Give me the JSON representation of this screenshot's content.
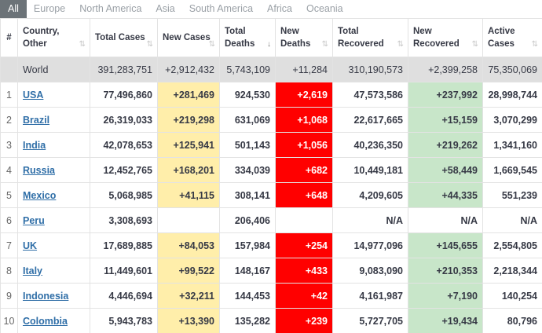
{
  "tabs": [
    "All",
    "Europe",
    "North America",
    "Asia",
    "South America",
    "Africa",
    "Oceania"
  ],
  "headers": {
    "hash": "#",
    "country": "Country, Other",
    "total_cases": "Total Cases",
    "new_cases": "New Cases",
    "total_deaths": "Total Deaths",
    "new_deaths": "New Deaths",
    "total_recovered": "Total Recovered",
    "new_recovered": "New Recovered",
    "active_cases": "Active Cases"
  },
  "icons": {
    "sort": "sort-arrows-icon",
    "sort_active": "sort-descending-icon"
  },
  "colors": {
    "new_cases": "#ffeeaa",
    "new_deaths": "#ff0000",
    "new_recovered": "#c8e6c9",
    "active_tab": "#6c7378",
    "link": "#2f6ea7"
  },
  "world": {
    "country": "World",
    "total_cases": "391,283,751",
    "new_cases": "+2,912,432",
    "total_deaths": "5,743,109",
    "new_deaths": "+11,284",
    "total_recovered": "310,190,573",
    "new_recovered": "+2,399,258",
    "active_cases": "75,350,069"
  },
  "rows": [
    {
      "rank": "1",
      "country": "USA",
      "total_cases": "77,496,860",
      "new_cases": "+281,469",
      "total_deaths": "924,530",
      "new_deaths": "+2,619",
      "total_recovered": "47,573,586",
      "new_recovered": "+237,992",
      "active_cases": "28,998,744"
    },
    {
      "rank": "2",
      "country": "Brazil",
      "total_cases": "26,319,033",
      "new_cases": "+219,298",
      "total_deaths": "631,069",
      "new_deaths": "+1,068",
      "total_recovered": "22,617,665",
      "new_recovered": "+15,159",
      "active_cases": "3,070,299"
    },
    {
      "rank": "3",
      "country": "India",
      "total_cases": "42,078,653",
      "new_cases": "+125,941",
      "total_deaths": "501,143",
      "new_deaths": "+1,056",
      "total_recovered": "40,236,350",
      "new_recovered": "+219,262",
      "active_cases": "1,341,160"
    },
    {
      "rank": "4",
      "country": "Russia",
      "total_cases": "12,452,765",
      "new_cases": "+168,201",
      "total_deaths": "334,039",
      "new_deaths": "+682",
      "total_recovered": "10,449,181",
      "new_recovered": "+58,449",
      "active_cases": "1,669,545"
    },
    {
      "rank": "5",
      "country": "Mexico",
      "total_cases": "5,068,985",
      "new_cases": "+41,115",
      "total_deaths": "308,141",
      "new_deaths": "+648",
      "total_recovered": "4,209,605",
      "new_recovered": "+44,335",
      "active_cases": "551,239"
    },
    {
      "rank": "6",
      "country": "Peru",
      "total_cases": "3,308,693",
      "new_cases": "",
      "total_deaths": "206,406",
      "new_deaths": "",
      "total_recovered": "N/A",
      "new_recovered": "N/A",
      "active_cases": "N/A"
    },
    {
      "rank": "7",
      "country": "UK",
      "total_cases": "17,689,885",
      "new_cases": "+84,053",
      "total_deaths": "157,984",
      "new_deaths": "+254",
      "total_recovered": "14,977,096",
      "new_recovered": "+145,655",
      "active_cases": "2,554,805"
    },
    {
      "rank": "8",
      "country": "Italy",
      "total_cases": "11,449,601",
      "new_cases": "+99,522",
      "total_deaths": "148,167",
      "new_deaths": "+433",
      "total_recovered": "9,083,090",
      "new_recovered": "+210,353",
      "active_cases": "2,218,344"
    },
    {
      "rank": "9",
      "country": "Indonesia",
      "total_cases": "4,446,694",
      "new_cases": "+32,211",
      "total_deaths": "144,453",
      "new_deaths": "+42",
      "total_recovered": "4,161,987",
      "new_recovered": "+7,190",
      "active_cases": "140,254"
    },
    {
      "rank": "10",
      "country": "Colombia",
      "total_cases": "5,943,783",
      "new_cases": "+13,390",
      "total_deaths": "135,282",
      "new_deaths": "+239",
      "total_recovered": "5,727,705",
      "new_recovered": "+19,434",
      "active_cases": "80,796"
    }
  ]
}
